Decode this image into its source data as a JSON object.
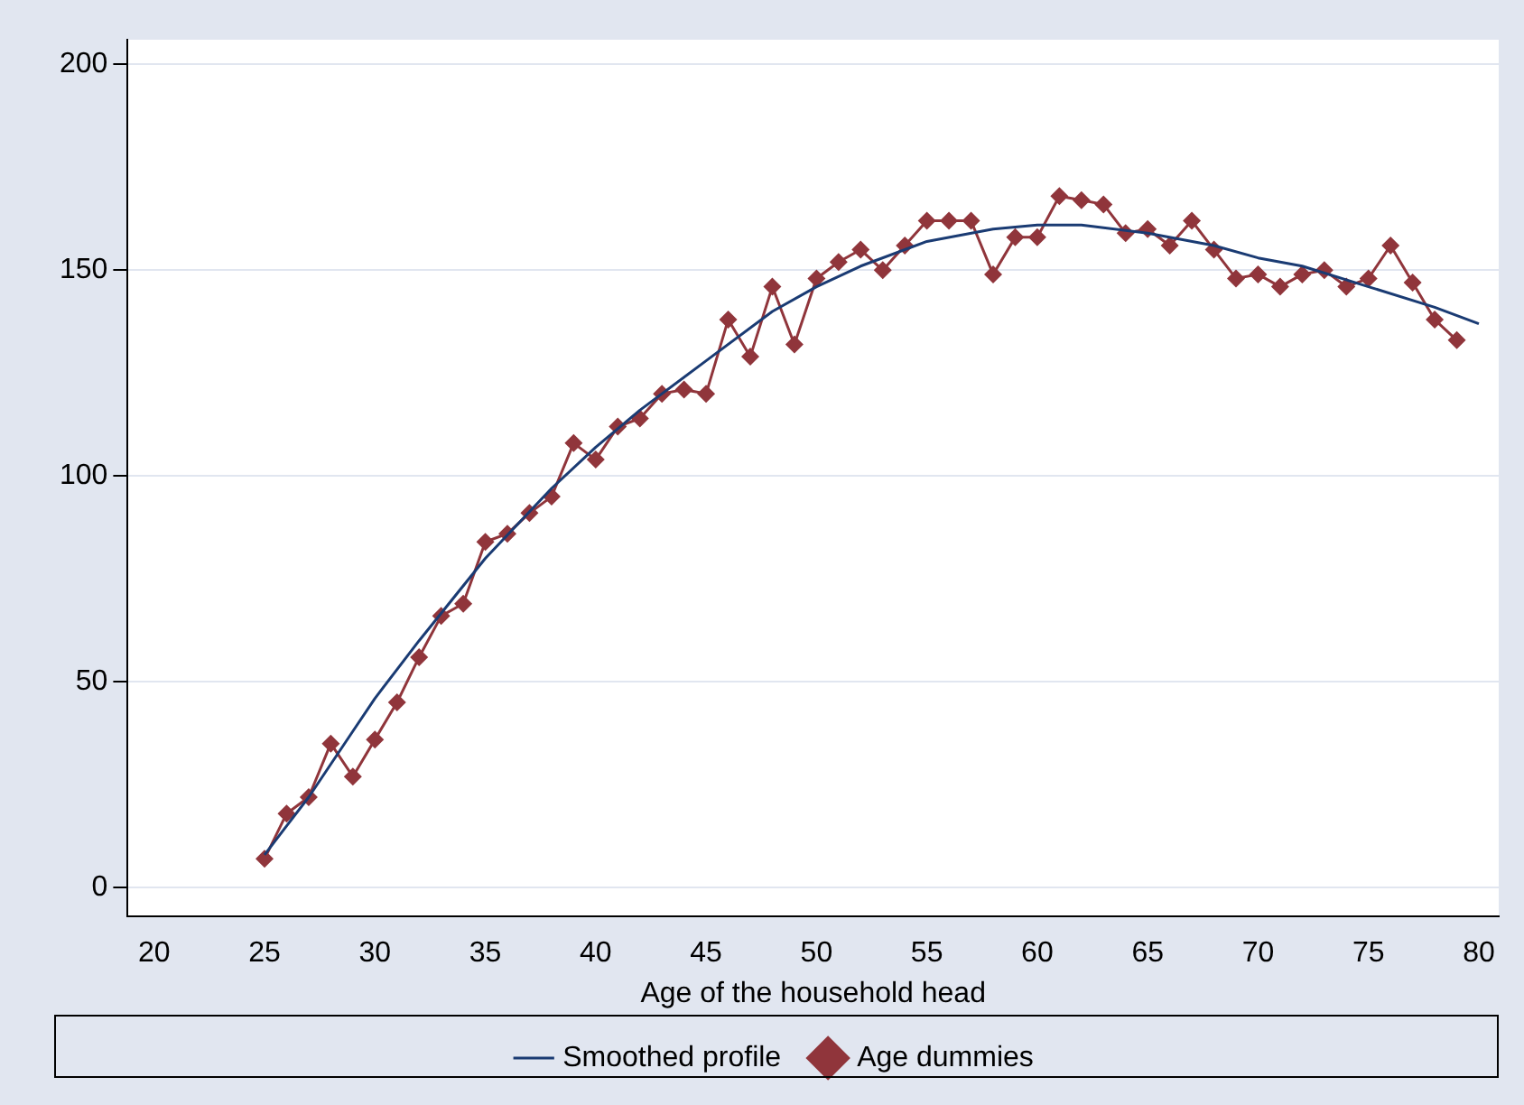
{
  "chart_data": {
    "type": "line",
    "xlabel": "Age of the household head",
    "xlim": [
      18.8,
      80.9
    ],
    "xticks": [
      20,
      25,
      30,
      35,
      40,
      45,
      50,
      55,
      60,
      65,
      70,
      75,
      80
    ],
    "ylim": [
      -7,
      206
    ],
    "yticks": [
      0,
      50,
      100,
      150,
      200
    ],
    "grid": "y",
    "legend": "bottom",
    "series": [
      {
        "name": "Smoothed profile",
        "color": "#1a3b73",
        "marker": "none",
        "x": [
          25,
          26,
          27,
          28,
          29,
          30,
          32,
          35,
          38,
          40,
          42,
          45,
          48,
          50,
          52,
          55,
          58,
          60,
          62,
          65,
          68,
          70,
          72,
          75,
          78,
          80
        ],
        "values": [
          8,
          15,
          22,
          30,
          38,
          46,
          60,
          80,
          97,
          107,
          116,
          128,
          140,
          146,
          151,
          157,
          160,
          161,
          161,
          159,
          156,
          153,
          151,
          146,
          141,
          137
        ]
      },
      {
        "name": "Age dummies",
        "color": "#90353b",
        "marker": "diamond",
        "x": [
          25,
          26,
          27,
          28,
          29,
          30,
          31,
          32,
          33,
          34,
          35,
          36,
          37,
          38,
          39,
          40,
          41,
          42,
          43,
          44,
          45,
          46,
          47,
          48,
          49,
          50,
          51,
          52,
          53,
          54,
          55,
          56,
          57,
          58,
          59,
          60,
          61,
          62,
          63,
          64,
          65,
          66,
          67,
          68,
          69,
          70,
          71,
          72,
          73,
          74,
          75,
          76,
          77,
          78,
          79
        ],
        "values": [
          7,
          18,
          22,
          35,
          27,
          36,
          45,
          56,
          66,
          69,
          84,
          86,
          91,
          95,
          108,
          104,
          112,
          114,
          120,
          121,
          120,
          138,
          129,
          146,
          132,
          148,
          152,
          155,
          150,
          156,
          162,
          162,
          162,
          149,
          158,
          158,
          168,
          167,
          166,
          159,
          160,
          156,
          162,
          155,
          148,
          149,
          146,
          149,
          150,
          146,
          148,
          156,
          147,
          138,
          133
        ]
      }
    ]
  }
}
